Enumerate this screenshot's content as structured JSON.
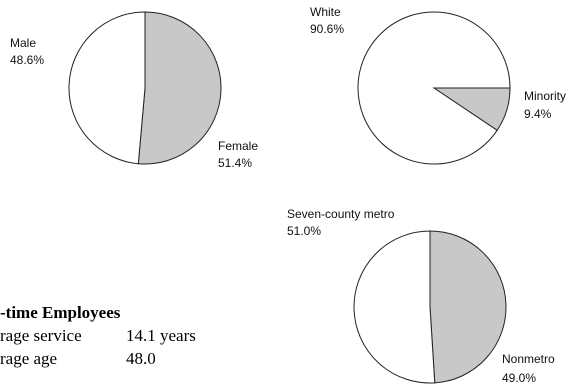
{
  "chart_data": [
    {
      "type": "pie",
      "slices": [
        {
          "label": "Female",
          "value": 51.4,
          "value_label": "51.4%",
          "color": "#c8c8c8"
        },
        {
          "label": "Male",
          "value": 48.6,
          "value_label": "48.6%",
          "color": "#ffffff"
        }
      ]
    },
    {
      "type": "pie",
      "slices": [
        {
          "label": "Minority",
          "value": 9.4,
          "value_label": "9.4%",
          "color": "#c8c8c8"
        },
        {
          "label": "White",
          "value": 90.6,
          "value_label": "90.6%",
          "color": "#ffffff"
        }
      ]
    },
    {
      "type": "pie",
      "slices": [
        {
          "label": "Nonmetro",
          "value": 49.0,
          "value_label": "49.0%",
          "color": "#c8c8c8"
        },
        {
          "label": "Seven-county metro",
          "value": 51.0,
          "value_label": "51.0%",
          "color": "#ffffff"
        }
      ]
    }
  ],
  "summary": {
    "title": "-time Employees",
    "rows": [
      {
        "label": "rage service",
        "value": "14.1 years"
      },
      {
        "label": "rage age",
        "value": "48.0"
      }
    ]
  }
}
